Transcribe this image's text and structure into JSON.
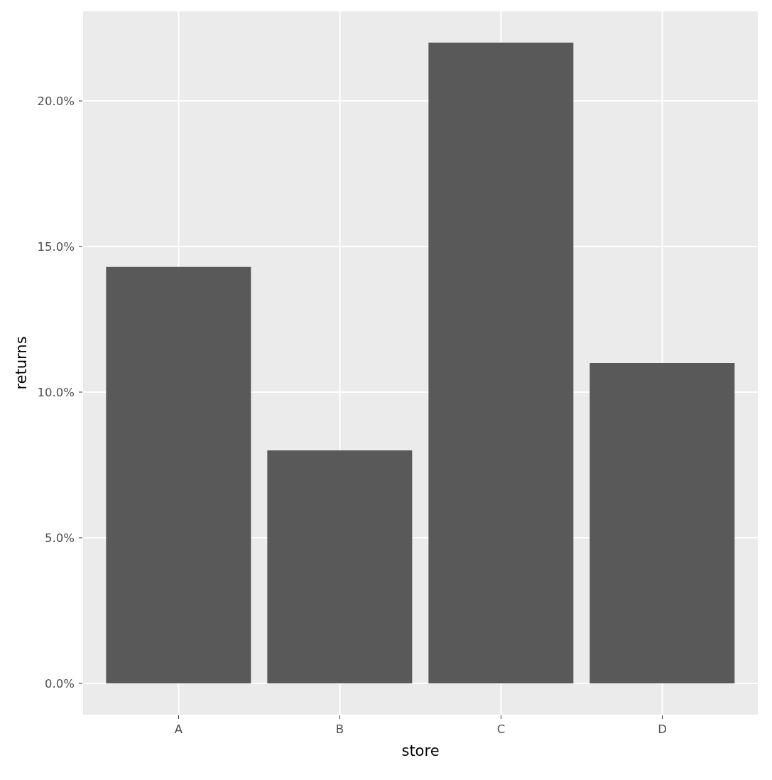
{
  "chart_data": {
    "type": "bar",
    "categories": [
      "A",
      "B",
      "C",
      "D"
    ],
    "values": [
      14.3,
      8.0,
      22.0,
      11.0
    ],
    "color": "#595959",
    "xlabel": "store",
    "ylabel": "returns",
    "ylim": [
      -1.1,
      23.1
    ],
    "yticks": [
      {
        "value": 0,
        "label": "0.0%"
      },
      {
        "value": 5,
        "label": "5.0%"
      },
      {
        "value": 10,
        "label": "10.0%"
      },
      {
        "value": 15,
        "label": "15.0%"
      },
      {
        "value": 20,
        "label": "20.0%"
      }
    ],
    "grid": true
  }
}
